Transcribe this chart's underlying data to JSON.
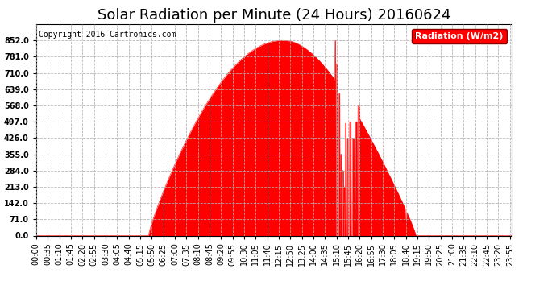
{
  "title": "Solar Radiation per Minute (24 Hours) 20160624",
  "copyright_text": "Copyright 2016 Cartronics.com",
  "legend_label": "Radiation (W/m2)",
  "background_color": "#ffffff",
  "plot_bg_color": "#ffffff",
  "fill_color": "#ff0000",
  "line_color": "#ff0000",
  "grid_color": "#b0b0b0",
  "y_ticks": [
    0.0,
    71.0,
    142.0,
    213.0,
    284.0,
    355.0,
    426.0,
    497.0,
    568.0,
    639.0,
    710.0,
    781.0,
    852.0
  ],
  "ylim": [
    0,
    923
  ],
  "x_tick_labels": [
    "00:00",
    "00:35",
    "01:10",
    "01:45",
    "02:20",
    "02:55",
    "03:30",
    "04:05",
    "04:40",
    "05:15",
    "05:50",
    "06:25",
    "07:00",
    "07:35",
    "08:10",
    "08:45",
    "09:20",
    "09:55",
    "10:30",
    "11:05",
    "11:40",
    "12:15",
    "12:50",
    "13:25",
    "14:00",
    "14:35",
    "15:10",
    "15:45",
    "16:20",
    "16:55",
    "17:30",
    "18:05",
    "18:40",
    "19:15",
    "19:50",
    "20:25",
    "21:00",
    "21:35",
    "22:10",
    "22:45",
    "23:20",
    "23:55"
  ],
  "title_fontsize": 13,
  "tick_fontsize": 7,
  "legend_fontsize": 8,
  "copyright_fontsize": 7
}
